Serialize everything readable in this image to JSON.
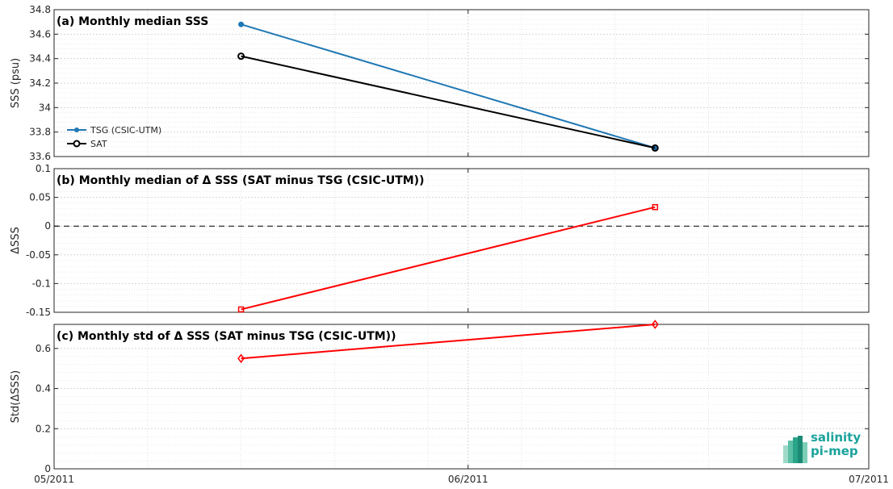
{
  "chart_data": [
    {
      "type": "line",
      "panel": "a",
      "title": "(a) Monthly median SSS",
      "xlabel": "",
      "ylabel": "SSS (psu)",
      "xlim": [
        "2011-05-01",
        "2011-07-01"
      ],
      "ylim": [
        33.6,
        34.8
      ],
      "yticks": [
        "33.6",
        "33.8",
        "34",
        "34.2",
        "34.4",
        "34.6",
        "34.8"
      ],
      "grid": true,
      "legend_position": "bottom-left",
      "series": [
        {
          "name": "TSG (CSIC-UTM)",
          "color": "#1f77b4",
          "marker": "dot",
          "x": [
            "2011-05-15",
            "2011-06-15"
          ],
          "y": [
            34.68,
            33.67
          ]
        },
        {
          "name": "SAT",
          "color": "#000000",
          "marker": "circle",
          "x": [
            "2011-05-15",
            "2011-06-15"
          ],
          "y": [
            34.42,
            33.67
          ]
        }
      ]
    },
    {
      "type": "line",
      "panel": "b",
      "title": "(b) Monthly median of Δ SSS (SAT minus TSG (CSIC-UTM))",
      "xlabel": "",
      "ylabel": "ΔSSS",
      "xlim": [
        "2011-05-01",
        "2011-07-01"
      ],
      "ylim": [
        -0.15,
        0.1
      ],
      "yticks": [
        "-0.15",
        "-0.1",
        "-0.05",
        "0",
        "0.05",
        "0.1"
      ],
      "grid": true,
      "zero_line": true,
      "series": [
        {
          "color": "#ff0000",
          "marker": "square",
          "x": [
            "2011-05-15",
            "2011-06-15"
          ],
          "y": [
            -0.145,
            0.033
          ]
        }
      ]
    },
    {
      "type": "line",
      "panel": "c",
      "title": "(c) Monthly std of Δ SSS (SAT minus TSG (CSIC-UTM))",
      "xlabel": "",
      "ylabel": "Std(ΔSSS)",
      "xlim": [
        "2011-05-01",
        "2011-07-01"
      ],
      "ylim": [
        0,
        0.72
      ],
      "yticks": [
        "0",
        "0.2",
        "0.4",
        "0.6"
      ],
      "xticks": [
        "05/2011",
        "06/2011",
        "07/2011"
      ],
      "grid": true,
      "series": [
        {
          "color": "#ff0000",
          "marker": "diamond",
          "x": [
            "2011-05-15",
            "2011-06-15"
          ],
          "y": [
            0.55,
            0.72
          ]
        }
      ]
    }
  ],
  "logo": {
    "line1": "salinity",
    "line2": "pi-mep",
    "color": "#1ba39c"
  }
}
